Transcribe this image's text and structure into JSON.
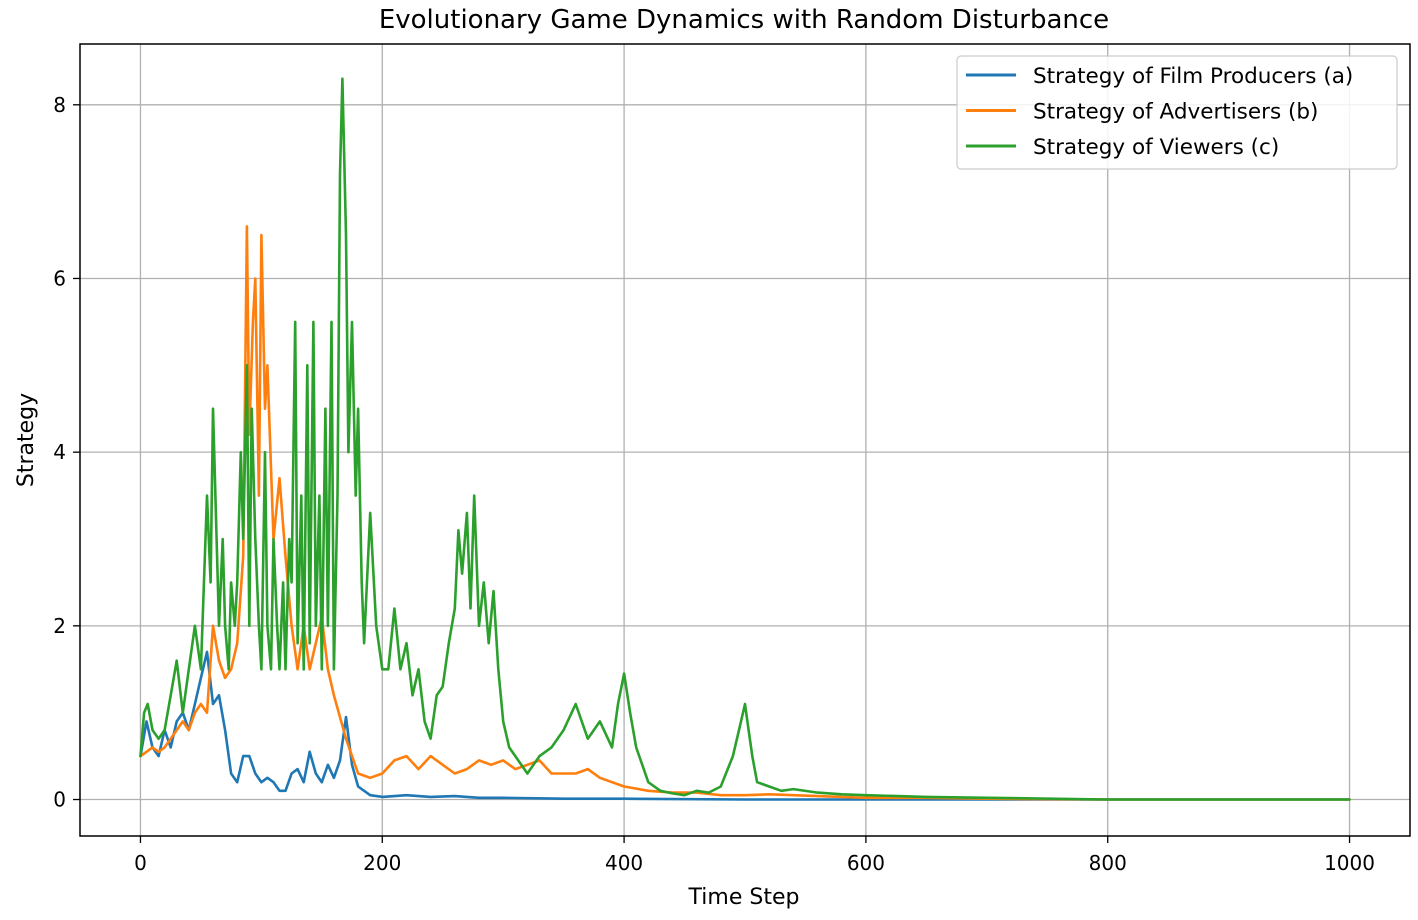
{
  "chart_data": {
    "type": "line",
    "title": "Evolutionary Game Dynamics with Random Disturbance",
    "xlabel": "Time Step",
    "ylabel": "Strategy",
    "xlim": [
      -50,
      1050
    ],
    "ylim": [
      -0.42,
      8.7
    ],
    "x_ticks": [
      0,
      200,
      400,
      600,
      800,
      1000
    ],
    "y_ticks": [
      0,
      2,
      4,
      6,
      8
    ],
    "x_tick_labels": [
      "0",
      "200",
      "400",
      "600",
      "800",
      "1000"
    ],
    "y_tick_labels": [
      "0",
      "2",
      "4",
      "6",
      "8"
    ],
    "grid": true,
    "legend_position": "top-right",
    "series": [
      {
        "name": "Strategy of Film Producers (a)",
        "color": "#1f77b4",
        "x": [
          0,
          5,
          10,
          15,
          20,
          25,
          30,
          35,
          40,
          45,
          50,
          55,
          60,
          65,
          70,
          75,
          80,
          85,
          90,
          95,
          100,
          105,
          110,
          115,
          120,
          125,
          130,
          135,
          140,
          145,
          150,
          155,
          160,
          165,
          170,
          175,
          180,
          190,
          200,
          220,
          240,
          260,
          280,
          300,
          350,
          400,
          500,
          600,
          700,
          800,
          900,
          1000
        ],
        "y": [
          0.5,
          0.9,
          0.6,
          0.5,
          0.8,
          0.6,
          0.9,
          1.0,
          0.8,
          1.1,
          1.4,
          1.7,
          1.1,
          1.2,
          0.8,
          0.3,
          0.2,
          0.5,
          0.5,
          0.3,
          0.2,
          0.25,
          0.2,
          0.1,
          0.1,
          0.3,
          0.35,
          0.2,
          0.55,
          0.3,
          0.2,
          0.4,
          0.25,
          0.45,
          0.95,
          0.4,
          0.15,
          0.05,
          0.03,
          0.05,
          0.03,
          0.04,
          0.02,
          0.02,
          0.01,
          0.01,
          0.0,
          0.0,
          0.0,
          0.0,
          0.0,
          0.0
        ]
      },
      {
        "name": "Strategy of Advertisers (b)",
        "color": "#ff7f0e",
        "x": [
          0,
          5,
          10,
          15,
          20,
          25,
          30,
          35,
          40,
          45,
          50,
          55,
          60,
          65,
          70,
          75,
          80,
          85,
          88,
          90,
          93,
          95,
          98,
          100,
          103,
          105,
          110,
          115,
          120,
          125,
          130,
          135,
          140,
          145,
          150,
          155,
          160,
          170,
          180,
          190,
          200,
          210,
          220,
          230,
          240,
          250,
          260,
          270,
          280,
          290,
          300,
          310,
          320,
          330,
          340,
          350,
          360,
          370,
          380,
          400,
          420,
          440,
          460,
          480,
          500,
          520,
          540,
          560,
          580,
          600,
          650,
          700,
          800,
          900,
          1000
        ],
        "y": [
          0.5,
          0.55,
          0.6,
          0.55,
          0.6,
          0.7,
          0.8,
          0.9,
          0.8,
          1.0,
          1.1,
          1.0,
          2.0,
          1.6,
          1.4,
          1.5,
          1.8,
          2.8,
          6.6,
          4.2,
          5.5,
          6.0,
          3.5,
          6.5,
          4.5,
          5.0,
          3.0,
          3.7,
          2.8,
          2.0,
          1.5,
          2.0,
          1.5,
          1.8,
          2.1,
          1.5,
          1.2,
          0.7,
          0.3,
          0.25,
          0.3,
          0.45,
          0.5,
          0.35,
          0.5,
          0.4,
          0.3,
          0.35,
          0.45,
          0.4,
          0.45,
          0.35,
          0.4,
          0.45,
          0.3,
          0.3,
          0.3,
          0.35,
          0.25,
          0.15,
          0.1,
          0.08,
          0.08,
          0.05,
          0.05,
          0.06,
          0.05,
          0.04,
          0.03,
          0.02,
          0.02,
          0.01,
          0.0,
          0.0,
          0.0
        ]
      },
      {
        "name": "Strategy of Viewers (c)",
        "color": "#2ca02c",
        "x": [
          0,
          3,
          6,
          10,
          15,
          20,
          25,
          30,
          35,
          40,
          45,
          50,
          55,
          58,
          60,
          63,
          65,
          68,
          70,
          73,
          75,
          78,
          80,
          83,
          85,
          88,
          90,
          92,
          95,
          98,
          100,
          103,
          105,
          108,
          110,
          113,
          115,
          118,
          120,
          123,
          125,
          128,
          130,
          133,
          135,
          138,
          140,
          143,
          145,
          148,
          150,
          153,
          155,
          158,
          160,
          163,
          165,
          167,
          170,
          172,
          175,
          178,
          180,
          183,
          185,
          190,
          195,
          200,
          205,
          210,
          215,
          220,
          225,
          230,
          235,
          240,
          245,
          250,
          255,
          260,
          263,
          266,
          270,
          273,
          276,
          280,
          284,
          288,
          292,
          296,
          300,
          305,
          310,
          315,
          320,
          330,
          340,
          350,
          360,
          370,
          380,
          390,
          395,
          400,
          405,
          410,
          420,
          430,
          440,
          450,
          460,
          470,
          480,
          490,
          495,
          500,
          503,
          506,
          510,
          520,
          530,
          540,
          560,
          580,
          600,
          650,
          700,
          800,
          900,
          1000
        ],
        "y": [
          0.5,
          1.0,
          1.1,
          0.8,
          0.7,
          0.8,
          1.2,
          1.6,
          1.0,
          1.5,
          2.0,
          1.5,
          3.5,
          2.5,
          4.5,
          3.0,
          2.0,
          3.0,
          2.0,
          1.5,
          2.5,
          2.0,
          2.5,
          4.0,
          3.0,
          5.0,
          2.0,
          4.5,
          3.0,
          2.0,
          1.5,
          4.0,
          2.0,
          1.5,
          3.0,
          2.0,
          1.5,
          2.5,
          1.5,
          3.0,
          2.5,
          5.5,
          1.8,
          3.5,
          1.5,
          5.0,
          1.8,
          5.5,
          2.0,
          3.5,
          1.5,
          4.5,
          2.0,
          5.5,
          1.5,
          3.5,
          7.2,
          8.3,
          6.5,
          4.0,
          5.5,
          3.5,
          4.5,
          2.5,
          1.8,
          3.3,
          2.0,
          1.5,
          1.5,
          2.2,
          1.5,
          1.8,
          1.2,
          1.5,
          0.9,
          0.7,
          1.2,
          1.3,
          1.8,
          2.2,
          3.1,
          2.6,
          3.3,
          2.2,
          3.5,
          2.0,
          2.5,
          1.8,
          2.4,
          1.5,
          0.9,
          0.6,
          0.5,
          0.4,
          0.3,
          0.5,
          0.6,
          0.8,
          1.1,
          0.7,
          0.9,
          0.6,
          1.1,
          1.45,
          1.0,
          0.6,
          0.2,
          0.1,
          0.07,
          0.05,
          0.1,
          0.08,
          0.15,
          0.5,
          0.8,
          1.1,
          0.8,
          0.5,
          0.2,
          0.15,
          0.1,
          0.12,
          0.08,
          0.06,
          0.05,
          0.03,
          0.02,
          0.0,
          0.0,
          0.0
        ]
      }
    ]
  }
}
